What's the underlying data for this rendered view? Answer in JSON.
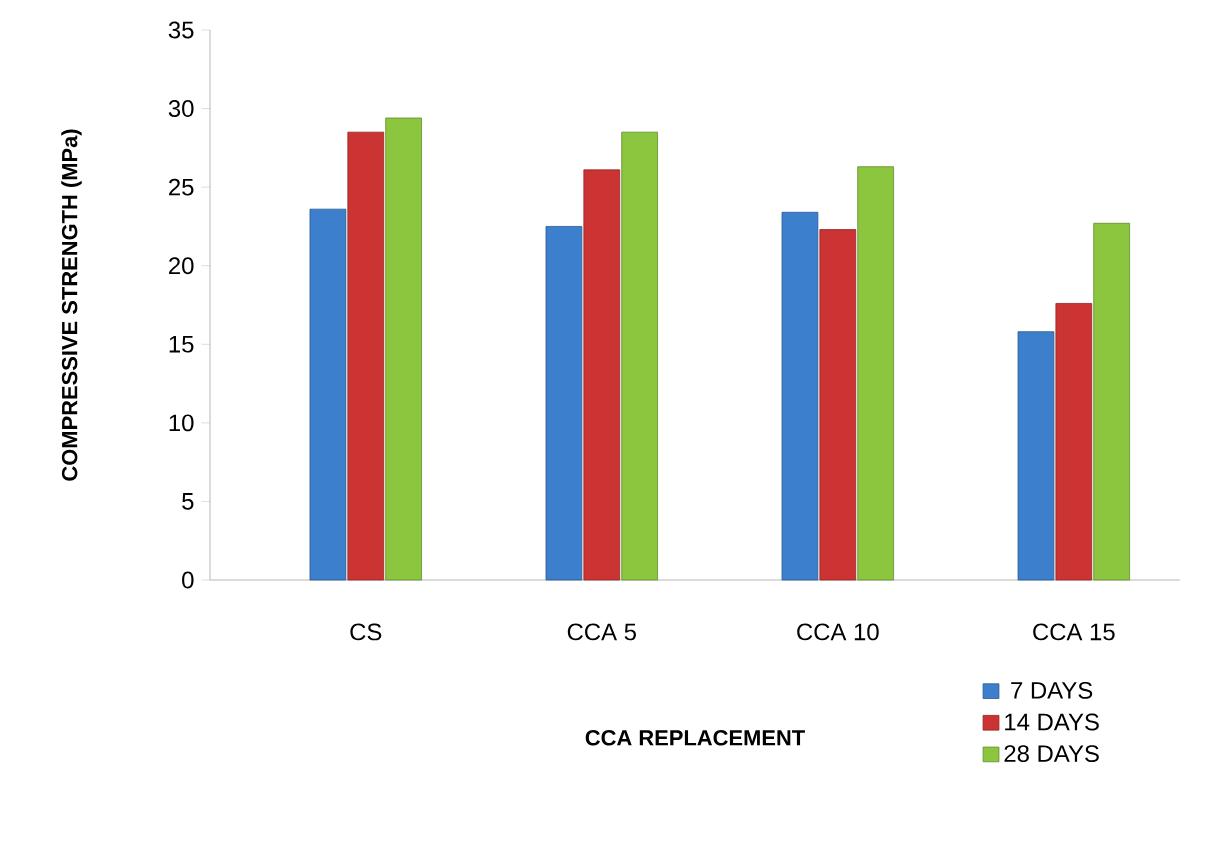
{
  "chart_data": {
    "type": "bar",
    "xlabel": "CCA REPLACEMENT",
    "ylabel": "COMPRESSIVE STRENGTH  (MPa)",
    "categories": [
      "CS",
      "CCA 5",
      "CCA 10",
      "CCA 15"
    ],
    "series": [
      {
        "name": "7 DAYS",
        "color": "#3c7fcc",
        "values": [
          23.6,
          22.5,
          23.4,
          15.8
        ]
      },
      {
        "name": "14 DAYS",
        "color": "#cc3333",
        "values": [
          28.5,
          26.1,
          22.3,
          17.6
        ]
      },
      {
        "name": "28 DAYS",
        "color": "#8cc63f",
        "values": [
          29.4,
          28.5,
          26.3,
          22.7
        ]
      }
    ],
    "ylim": [
      0,
      35
    ],
    "yticks": [
      0,
      5,
      10,
      15,
      20,
      25,
      30,
      35
    ],
    "legend": "bottom right"
  }
}
